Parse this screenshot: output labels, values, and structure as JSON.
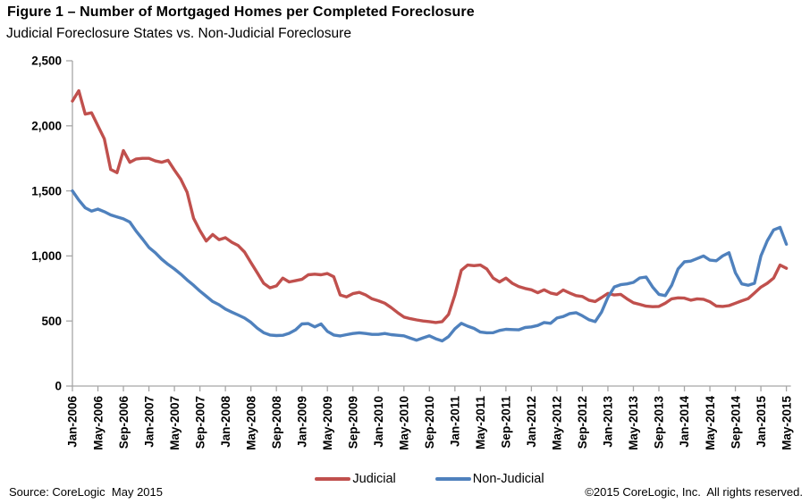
{
  "title": "Figure 1 – Number of Mortgaged Homes per Completed Foreclosure",
  "subtitle": "Judicial Foreclosure States vs. Non-Judicial Foreclosure",
  "footer": {
    "left": "Source: CoreLogic  May 2015",
    "right": "©2015 CoreLogic, Inc.  All rights reserved."
  },
  "chart_data": {
    "type": "line",
    "grid": false,
    "legend_position": "bottom",
    "axis_color": "#A6A6A6",
    "ylim": [
      0,
      2500
    ],
    "y_tick_values": [
      0,
      500,
      1000,
      1500,
      2000,
      2500
    ],
    "y_tick_labels": [
      "0",
      "500",
      "1,000",
      "1,500",
      "2,000",
      "2,500"
    ],
    "x_tick_labels": [
      "Jan-2006",
      "May-2006",
      "Sep-2006",
      "Jan-2007",
      "May-2007",
      "Sep-2007",
      "Jan-2008",
      "May-2008",
      "Sep-2008",
      "Jan-2009",
      "May-2009",
      "Sep-2009",
      "Jan-2010",
      "May-2010",
      "Sep-2010",
      "Jan-2011",
      "May-2011",
      "Sep-2011",
      "Jan-2012",
      "May-2012",
      "Sep-2012",
      "Jan-2013",
      "May-2013",
      "Sep-2013",
      "Jan-2014",
      "May-2014",
      "Sep-2014",
      "Jan-2015",
      "May-2015"
    ],
    "points_per_tick": 4,
    "x_start": "Jan-2006",
    "x_end": "May-2015",
    "series": [
      {
        "name": "Judicial",
        "color": "#C0504D",
        "values": [
          2190,
          2270,
          2090,
          2100,
          2000,
          1900,
          1665,
          1640,
          1810,
          1720,
          1745,
          1750,
          1750,
          1730,
          1720,
          1735,
          1660,
          1590,
          1490,
          1290,
          1195,
          1115,
          1165,
          1125,
          1140,
          1105,
          1080,
          1030,
          950,
          870,
          790,
          755,
          770,
          830,
          800,
          810,
          820,
          855,
          860,
          855,
          865,
          840,
          700,
          685,
          710,
          720,
          700,
          670,
          655,
          637,
          603,
          565,
          530,
          518,
          508,
          500,
          495,
          488,
          495,
          550,
          700,
          890,
          930,
          925,
          930,
          900,
          830,
          800,
          830,
          790,
          765,
          750,
          740,
          717,
          740,
          715,
          705,
          738,
          715,
          695,
          688,
          660,
          650,
          680,
          712,
          700,
          705,
          670,
          640,
          628,
          614,
          610,
          612,
          637,
          670,
          678,
          676,
          660,
          670,
          667,
          648,
          615,
          612,
          618,
          637,
          655,
          672,
          715,
          760,
          790,
          830,
          930,
          905
        ]
      },
      {
        "name": "Non-Judicial",
        "color": "#4F81BD",
        "values": [
          1500,
          1430,
          1370,
          1345,
          1360,
          1340,
          1315,
          1300,
          1285,
          1260,
          1190,
          1130,
          1065,
          1025,
          975,
          935,
          900,
          860,
          815,
          775,
          730,
          690,
          650,
          625,
          592,
          568,
          546,
          523,
          490,
          445,
          410,
          392,
          388,
          390,
          405,
          432,
          477,
          480,
          455,
          477,
          420,
          392,
          385,
          395,
          404,
          409,
          404,
          397,
          397,
          404,
          395,
          390,
          386,
          368,
          352,
          370,
          386,
          363,
          347,
          380,
          440,
          482,
          460,
          443,
          415,
          409,
          410,
          427,
          436,
          434,
          432,
          450,
          455,
          466,
          488,
          482,
          523,
          534,
          557,
          564,
          540,
          510,
          495,
          568,
          683,
          762,
          779,
          785,
          797,
          831,
          838,
          762,
          705,
          695,
          775,
          900,
          955,
          960,
          980,
          1000,
          968,
          963,
          1000,
          1025,
          870,
          785,
          775,
          790,
          1000,
          1116,
          1200,
          1220,
          1090
        ]
      }
    ]
  }
}
